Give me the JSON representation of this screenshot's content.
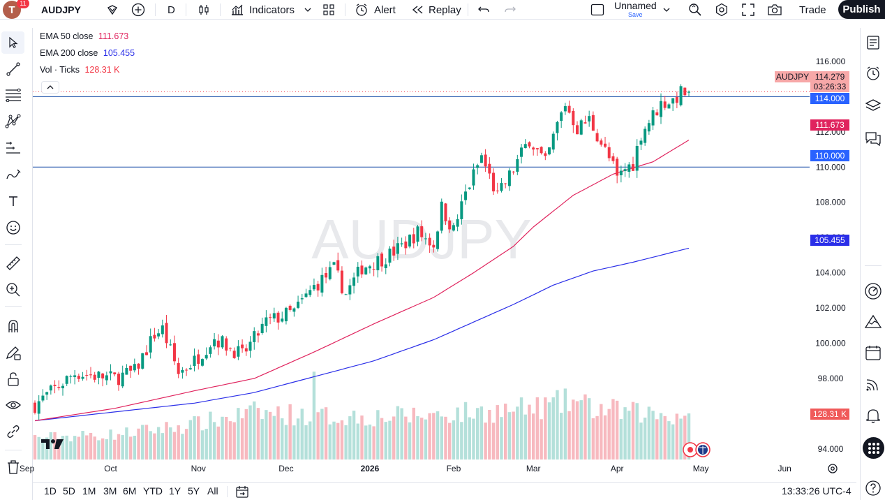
{
  "toolbar": {
    "avatar_letter": "T",
    "notification_count": "11",
    "symbol": "AUDJPY",
    "interval": "D",
    "indicators_label": "Indicators",
    "alert_label": "Alert",
    "replay_label": "Replay",
    "layout_name": "Unnamed",
    "layout_save": "Save",
    "trade_label": "Trade",
    "publish_label": "Publish"
  },
  "legend": {
    "ema50_label": "EMA 50 close",
    "ema50_value": "111.673",
    "ema200_label": "EMA 200 close",
    "ema200_value": "105.455",
    "vol_label": "Vol · Ticks",
    "vol_value": "128.31 K"
  },
  "watermark": "AUDJPY",
  "price_labels": {
    "symbol_tag": "AUDJPY",
    "last_price": "114.279",
    "countdown": "03:26:33",
    "hline_upper": "114.000",
    "ema50": "111.673",
    "hline_lower": "110.000",
    "ema200": "105.455",
    "volume": "128.31 K"
  },
  "bottom": {
    "ranges": [
      "1D",
      "5D",
      "1M",
      "3M",
      "6M",
      "YTD",
      "1Y",
      "5Y",
      "All"
    ],
    "clock": "13:33:26 UTC-4"
  },
  "colors": {
    "up": "#089981",
    "down": "#f23645",
    "ema50": "#e0245e",
    "ema200": "#2a2ee8",
    "hline": "#1a4fa8",
    "vol_up": "#b4e0da",
    "vol_down": "#f7b9bf",
    "brand": "#131722"
  },
  "chart_data": {
    "type": "candlestick",
    "symbol": "AUDJPY",
    "interval": "D",
    "y_ticks": [
      "116.000",
      "114.000",
      "112.000",
      "110.000",
      "108.000",
      "106.000",
      "104.000",
      "102.000",
      "100.000",
      "98.000",
      "94.000"
    ],
    "ylim": [
      93.4,
      117.9
    ],
    "x_ticks": [
      "Sep",
      "Oct",
      "Nov",
      "Dec",
      "2026",
      "Feb",
      "Mar",
      "Apr",
      "May",
      "Jun"
    ],
    "horizontal_lines": [
      114.0,
      110.0
    ],
    "ema50_last": 111.673,
    "ema200_last": 105.455,
    "last_close": 114.279,
    "last_volume": "128.31 K",
    "ema50_path": [
      [
        0,
        95.6
      ],
      [
        20,
        96.3
      ],
      [
        40,
        97.3
      ],
      [
        55,
        98.0
      ],
      [
        70,
        99.5
      ],
      [
        85,
        101.1
      ],
      [
        100,
        102.6
      ],
      [
        110,
        104.0
      ],
      [
        120,
        105.5
      ],
      [
        125,
        106.6
      ],
      [
        135,
        108.4
      ],
      [
        145,
        109.6
      ],
      [
        150,
        109.95
      ],
      [
        155,
        110.3
      ],
      [
        165,
        111.673
      ]
    ],
    "ema200_path": [
      [
        0,
        95.6
      ],
      [
        20,
        96.1
      ],
      [
        40,
        96.6
      ],
      [
        55,
        97.2
      ],
      [
        70,
        98.1
      ],
      [
        85,
        99.0
      ],
      [
        100,
        100.2
      ],
      [
        110,
        101.2
      ],
      [
        120,
        102.2
      ],
      [
        130,
        103.3
      ],
      [
        140,
        104.1
      ],
      [
        150,
        104.6
      ],
      [
        165,
        105.455
      ]
    ],
    "close_path": [
      [
        0,
        96.5
      ],
      [
        10,
        98.3
      ],
      [
        20,
        98.0
      ],
      [
        25,
        98.4
      ],
      [
        30,
        100.5
      ],
      [
        32,
        100.8
      ],
      [
        36,
        98.3
      ],
      [
        40,
        99.0
      ],
      [
        45,
        100.3
      ],
      [
        50,
        99.6
      ],
      [
        52,
        99.3
      ],
      [
        58,
        101.2
      ],
      [
        65,
        101.8
      ],
      [
        70,
        103.2
      ],
      [
        75,
        104.2
      ],
      [
        78,
        102.8
      ],
      [
        82,
        104.3
      ],
      [
        88,
        104.9
      ],
      [
        92,
        105.5
      ],
      [
        96,
        106.3
      ],
      [
        100,
        105.6
      ],
      [
        102,
        107.7
      ],
      [
        105,
        106.4
      ],
      [
        108,
        108.5
      ],
      [
        112,
        110.6
      ],
      [
        116,
        108.3
      ],
      [
        120,
        109.9
      ],
      [
        124,
        111.6
      ],
      [
        128,
        110.2
      ],
      [
        131,
        112.4
      ],
      [
        133,
        113.6
      ],
      [
        136,
        112.2
      ],
      [
        139,
        112.7
      ],
      [
        142,
        111.4
      ],
      [
        145,
        110.0
      ],
      [
        146,
        109.3
      ],
      [
        148,
        109.9
      ],
      [
        150,
        110.2
      ],
      [
        152,
        111.9
      ],
      [
        154,
        112.6
      ],
      [
        157,
        113.6
      ],
      [
        160,
        113.8
      ],
      [
        162,
        114.2
      ],
      [
        164,
        114.279
      ]
    ],
    "volume_profile": [
      [
        0,
        0.28
      ],
      [
        20,
        0.32
      ],
      [
        40,
        0.45
      ],
      [
        55,
        0.6
      ],
      [
        75,
        0.55
      ],
      [
        90,
        0.55
      ],
      [
        110,
        0.6
      ],
      [
        125,
        0.65
      ],
      [
        135,
        0.75
      ],
      [
        140,
        0.65
      ],
      [
        150,
        0.6
      ],
      [
        165,
        0.55
      ]
    ]
  }
}
